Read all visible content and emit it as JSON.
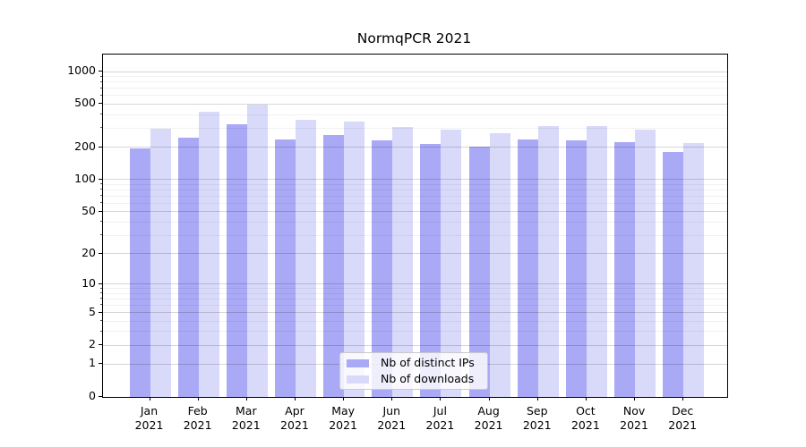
{
  "title": "NormqPCR 2021",
  "chart_data": {
    "type": "bar",
    "title": "NormqPCR 2021",
    "categories": [
      "Jan",
      "Feb",
      "Mar",
      "Apr",
      "May",
      "Jun",
      "Jul",
      "Aug",
      "Sep",
      "Oct",
      "Nov",
      "Dec"
    ],
    "x_year_label": "2021",
    "series": [
      {
        "name": "Nb of distinct IPs",
        "color": "#a9a9f5",
        "values": [
          194,
          243,
          323,
          238,
          257,
          232,
          214,
          203,
          236,
          233,
          223,
          182
        ]
      },
      {
        "name": "Nb of downloads",
        "color": "#d9d9fa",
        "values": [
          299,
          424,
          494,
          362,
          344,
          308,
          292,
          272,
          312,
          315,
          290,
          218
        ]
      }
    ],
    "y_scale": "log10(1+x)",
    "y_ticks": [
      0,
      1,
      2,
      5,
      10,
      20,
      50,
      100,
      200,
      500,
      1000
    ],
    "y_minor_ticks": [
      3,
      4,
      6,
      7,
      8,
      9,
      30,
      40,
      60,
      70,
      80,
      90,
      300,
      400,
      600,
      700,
      800,
      900
    ],
    "ylim": [
      0,
      1435
    ],
    "xlabel": "",
    "ylabel": "",
    "grid": true,
    "legend_position": "lower center",
    "legend_items": [
      "Nb of distinct IPs",
      "Nb of downloads"
    ]
  }
}
